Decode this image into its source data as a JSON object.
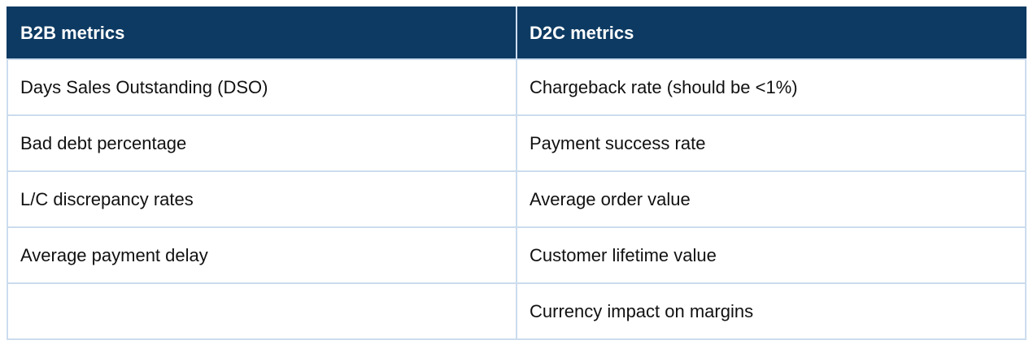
{
  "theme": {
    "header_bg": "#0d3a62",
    "header_text": "#ffffff",
    "border": "#ccdcee",
    "body_text": "#111111",
    "page_bg": "#ffffff"
  },
  "table": {
    "columns": [
      {
        "header": "B2B metrics",
        "cells": [
          "Days Sales Outstanding (DSO)",
          "Bad debt percentage",
          "L/C discrepancy rates",
          "Average payment delay",
          ""
        ]
      },
      {
        "header": "D2C metrics",
        "cells": [
          "Chargeback rate (should be <1%)",
          "Payment success rate",
          "Average order value",
          "Customer lifetime value",
          "Currency impact on margins"
        ]
      }
    ]
  }
}
